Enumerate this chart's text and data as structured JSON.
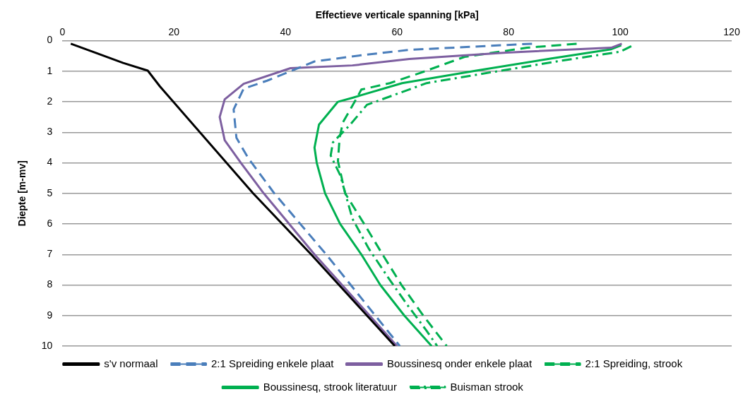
{
  "chart_data": {
    "type": "line",
    "xlabel": "Effectieve verticale spanning [kPa]",
    "ylabel": "Diepte [m-mv]",
    "xlim": [
      0,
      120
    ],
    "xticks": [
      0,
      20,
      40,
      60,
      80,
      100,
      120
    ],
    "ylim": [
      10,
      0
    ],
    "yticks": [
      0,
      1,
      2,
      3,
      4,
      5,
      6,
      7,
      8,
      9,
      10
    ],
    "grid": "y",
    "legend": "bottom",
    "marker": "none",
    "series": [
      {
        "name": "s'v normaal",
        "color": "#000000",
        "line_style": "solid",
        "x": [
          1.5,
          6,
          10.9,
          15.3,
          17.5,
          34.2,
          44.6,
          59.6
        ],
        "values": [
          0.1,
          0.4,
          0.73,
          0.98,
          1.5,
          5,
          7,
          10
        ]
      },
      {
        "name": "2:1 Spreiding enkele plaat",
        "color": "#4a7ebb",
        "line_style": "dashed",
        "x": [
          84.2,
          62.2,
          53.5,
          45.2,
          36.7,
          32.5,
          30.7,
          31.2,
          33.3,
          38,
          47.3,
          60.5
        ],
        "values": [
          0.1,
          0.3,
          0.48,
          0.68,
          1.31,
          1.57,
          2.25,
          3.18,
          3.84,
          5,
          7,
          10
        ]
      },
      {
        "name": "Boussinesq onder enkele plaat",
        "color": "#7d5fa0",
        "line_style": "solid",
        "x": [
          100.3,
          98.4,
          79.6,
          62.2,
          52,
          40.9,
          32.5,
          29.1,
          28.2,
          29.1,
          32,
          36.1,
          45.2,
          60
        ],
        "values": [
          0.1,
          0.23,
          0.39,
          0.6,
          0.81,
          0.9,
          1.41,
          1.92,
          2.5,
          3.26,
          4,
          5,
          7,
          10
        ]
      },
      {
        "name": "2:1 Spreiding, strook",
        "color": "#00b050",
        "line_style": "dashed",
        "x": [
          92.2,
          83.3,
          72.1,
          64.1,
          58.7,
          53.6,
          52.4,
          50.3,
          49.7,
          49.4,
          50.7,
          54.1,
          57.4,
          60.8,
          64.7,
          68.9
        ],
        "values": [
          0.1,
          0.23,
          0.53,
          1.06,
          1.39,
          1.6,
          2,
          2.67,
          3.18,
          3.94,
          5,
          6,
          7,
          8,
          9,
          10
        ]
      },
      {
        "name": "Boussinesq, strook literatuur",
        "color": "#00b050",
        "line_style": "solid",
        "x": [
          100.2,
          98.4,
          87.7,
          74.2,
          60.9,
          52,
          49.4,
          46,
          45.2,
          45.6,
          47.1,
          49.8,
          53.6,
          57,
          61.3,
          66.2
        ],
        "values": [
          0.15,
          0.28,
          0.58,
          0.98,
          1.39,
          1.87,
          2,
          2.75,
          3.5,
          4,
          5,
          6,
          7,
          8,
          9,
          10
        ]
      },
      {
        "name": "Buisman strook",
        "color": "#00b050",
        "line_style": "dotted",
        "x": [
          102,
          100,
          88.6,
          77,
          65.3,
          54.6,
          51.6,
          48.5,
          48.1,
          49.8,
          52,
          54.9,
          58.3,
          61.8,
          65.3,
          67.2
        ],
        "values": [
          0.18,
          0.36,
          0.68,
          1.03,
          1.39,
          2.1,
          2.75,
          3.33,
          3.76,
          4.4,
          5.83,
          6.8,
          7.73,
          8.64,
          9.5,
          10
        ]
      }
    ]
  }
}
